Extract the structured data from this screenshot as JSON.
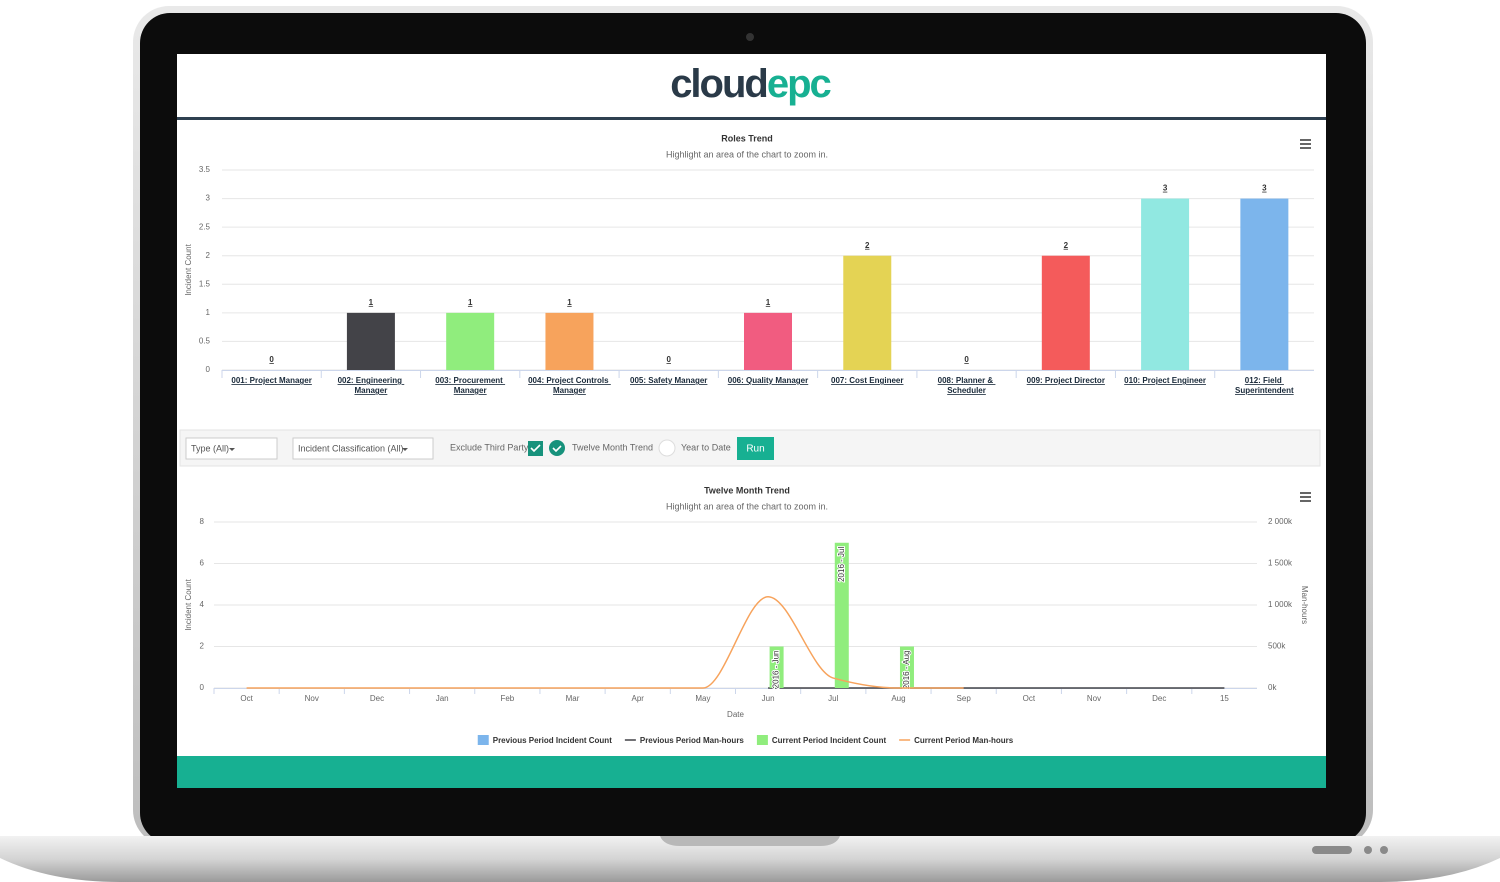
{
  "logo": [
    "cloud",
    "epc"
  ],
  "chart_data": [
    {
      "type": "bar",
      "title": "Roles Trend",
      "subtitle": "Highlight an area of the chart to zoom in.",
      "y_label": "Incident Count",
      "categories": [
        "001: Project Manager",
        "002: Engineering Manager",
        "003: Procurement Manager",
        "004: Project Controls Manager",
        "005: Safety Manager",
        "006: Quality Manager",
        "007: Cost Engineer",
        "008: Planner & Scheduler",
        "009: Project Director",
        "010: Project Engineer",
        "012: Field Superintendent"
      ],
      "values": [
        0,
        1,
        1,
        1,
        0,
        1,
        2,
        0,
        2,
        3,
        3
      ],
      "colors": [
        "#7cb5ec",
        "#434348",
        "#90ed7d",
        "#f7a35c",
        "#8085e9",
        "#f15c80",
        "#e4d354",
        "#2b908f",
        "#f45b5b",
        "#91e8e1",
        "#7cb5ec"
      ],
      "ylim": [
        0,
        3.5
      ],
      "yticks": [
        0,
        0.5,
        1,
        1.5,
        2,
        2.5,
        3,
        3.5
      ],
      "grid": true
    },
    {
      "type": "combo",
      "title": "Twelve Month Trend",
      "subtitle": "Highlight an area of the chart to zoom in.",
      "x_label": "Date",
      "y_label": "Incident Count",
      "y2_label": "Man-hours",
      "categories": [
        "Oct",
        "Nov",
        "Dec",
        "Jan",
        "Feb",
        "Mar",
        "Apr",
        "May",
        "Jun",
        "Jul",
        "Aug",
        "Sep",
        "Oct",
        "Nov",
        "Dec",
        "15"
      ],
      "series": [
        {
          "name": "Previous Period Incident Count",
          "type": "bar",
          "color": "#7cb5ec",
          "values": [
            null,
            null,
            null,
            null,
            null,
            null,
            null,
            null,
            null,
            null,
            null,
            null,
            0,
            0,
            0,
            0
          ]
        },
        {
          "name": "Previous Period Man-hours",
          "type": "line",
          "axis": "y2",
          "color": "#434348",
          "values": [
            null,
            null,
            null,
            null,
            null,
            null,
            null,
            null,
            0,
            0,
            0,
            0,
            0,
            0,
            0,
            0
          ]
        },
        {
          "name": "Current Period Incident Count",
          "type": "bar",
          "color": "#90ed7d",
          "values": [
            0,
            0,
            0,
            0,
            0,
            0,
            0,
            0,
            2,
            7,
            2,
            0,
            null,
            null,
            null,
            null
          ],
          "data_labels": [
            null,
            null,
            null,
            null,
            null,
            null,
            null,
            null,
            "2016 - Jun",
            "2016 - Jul",
            "2016 - Aug",
            null,
            null,
            null,
            null,
            null
          ]
        },
        {
          "name": "Current Period Man-hours",
          "type": "line",
          "axis": "y2",
          "color": "#f7a35c",
          "values": [
            0,
            0,
            0,
            0,
            0,
            0,
            0,
            0,
            1100000,
            120000,
            0,
            0,
            null,
            null,
            null,
            null
          ]
        }
      ],
      "ylim": [
        0,
        8
      ],
      "yticks": [
        0,
        2,
        4,
        6,
        8
      ],
      "y2lim": [
        0,
        2000000
      ],
      "y2ticks": [
        {
          "value": 0,
          "label": "0k"
        },
        {
          "value": 500000,
          "label": "500k"
        },
        {
          "value": 1000000,
          "label": "1 000k"
        },
        {
          "value": 1500000,
          "label": "1 500k"
        },
        {
          "value": 2000000,
          "label": "2 000k"
        }
      ],
      "grid": true,
      "legend": "bottom"
    }
  ],
  "filters": {
    "type": "Type (All)",
    "classification": "Incident Classification (All)",
    "exclude_third_party": "Exclude Third Party",
    "twelve_month": "Twelve Month Trend",
    "year_to_date": "Year to Date",
    "run": "Run"
  }
}
